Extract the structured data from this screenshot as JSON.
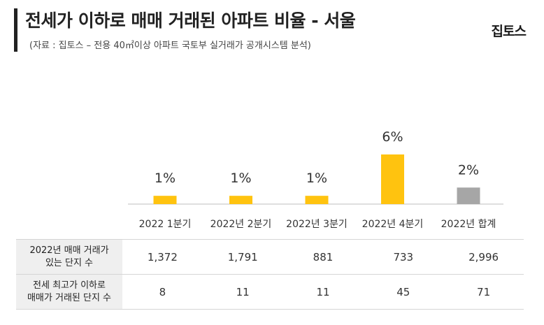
{
  "header": {
    "title": "전세가 이하로 매매 거래된 아파트 비율 - 서울",
    "subtitle": "(자료 : 집토스 – 전용 40㎡이상 아파트 국토부 실거래가 공개시스템 분석)",
    "brand": "집토스"
  },
  "colors": {
    "quarter_bar": "#FFC30F",
    "total_bar": "#A6A6A6",
    "axis": "#BFBFBF",
    "row_header_bg": "#EFEFEF"
  },
  "chart_data": {
    "type": "bar",
    "categories": [
      "2022 1분기",
      "2022년 2분기",
      "2022년 3분기",
      "2022년 4분기",
      "2022년 합계"
    ],
    "values": [
      1,
      1,
      1,
      6,
      2
    ],
    "value_labels": [
      "1%",
      "1%",
      "1%",
      "6%",
      "2%"
    ],
    "unit": "%",
    "ylim": [
      0,
      6
    ],
    "highlight_last_as_total": true,
    "grid": false,
    "legend": "none"
  },
  "table": {
    "rows": [
      {
        "header_lines": [
          "2022년 매매 거래가",
          "있는 단지 수"
        ],
        "values": [
          "1,372",
          "1,791",
          "881",
          "733",
          "2,996"
        ]
      },
      {
        "header_lines": [
          "전세 최고가 이하로",
          "매매가 거래된 단지 수"
        ],
        "values": [
          "8",
          "11",
          "11",
          "45",
          "71"
        ]
      }
    ]
  }
}
